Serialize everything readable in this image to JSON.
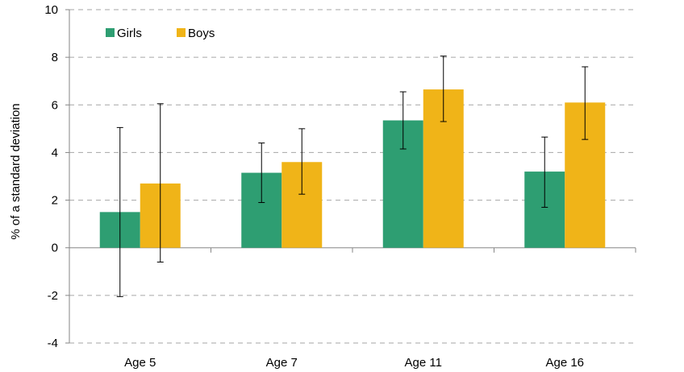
{
  "chart_data": {
    "type": "bar",
    "title": "",
    "xlabel": "",
    "ylabel": "% of a standard deviation",
    "ylim": [
      -4,
      10
    ],
    "yticks": [
      -4,
      -2,
      0,
      2,
      4,
      6,
      8,
      10
    ],
    "grid": true,
    "legend_position": "top-left",
    "categories": [
      "Age 5",
      "Age 7",
      "Age 11",
      "Age 16"
    ],
    "series": [
      {
        "name": "Girls",
        "color": "#2E9E72",
        "values": [
          1.5,
          3.15,
          5.35,
          3.2
        ],
        "error_low": [
          -2.05,
          1.9,
          4.15,
          1.7
        ],
        "error_high": [
          5.05,
          4.4,
          6.55,
          4.65
        ]
      },
      {
        "name": "Boys",
        "color": "#F0B418",
        "values": [
          2.7,
          3.6,
          6.65,
          6.1
        ],
        "error_low": [
          -0.6,
          2.25,
          5.3,
          4.55
        ],
        "error_high": [
          6.05,
          5.0,
          8.05,
          7.6
        ]
      }
    ]
  }
}
